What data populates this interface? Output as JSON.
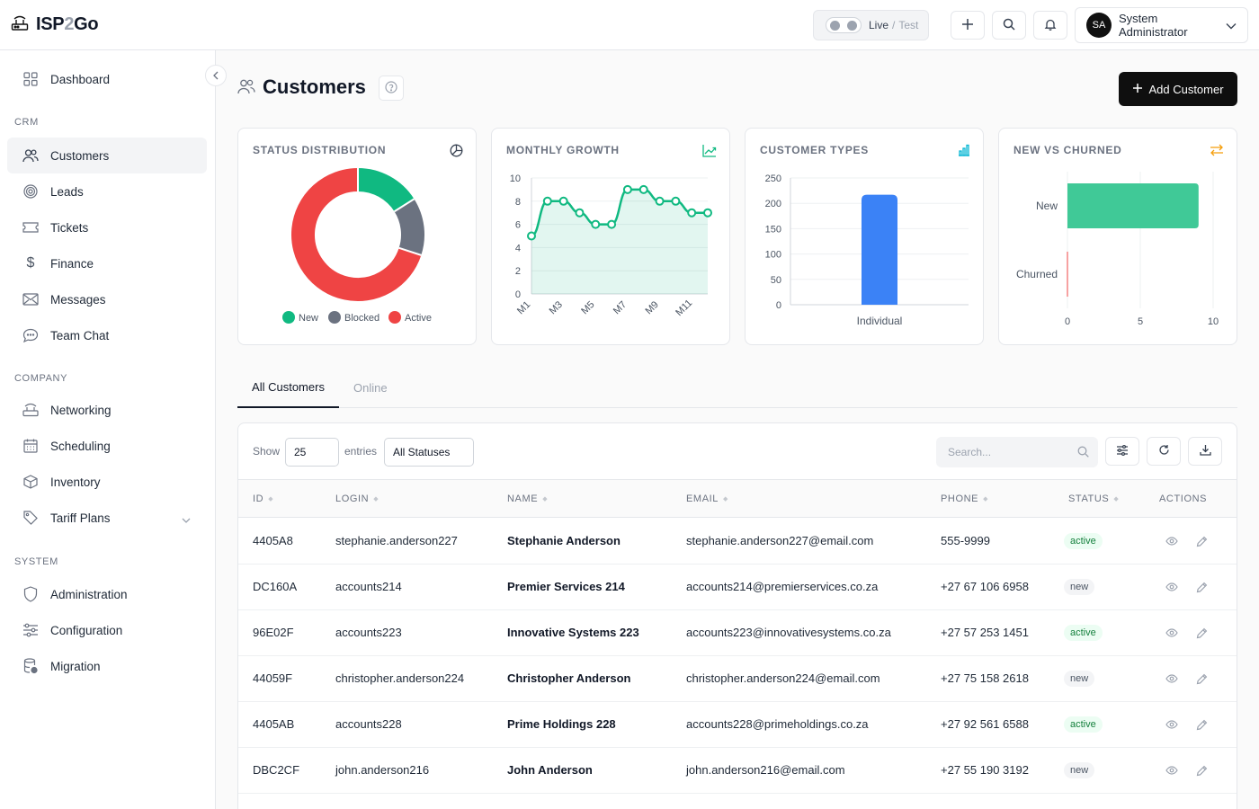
{
  "app": {
    "brand_prefix": "ISP",
    "brand_mid": "2",
    "brand_suffix": "Go"
  },
  "topbar": {
    "mode_live": "Live",
    "mode_sep": "/",
    "mode_test": "Test",
    "user_initials": "SA",
    "user_name": "System Administrator"
  },
  "sidebar": {
    "dashboard": "Dashboard",
    "crm_section": "CRM",
    "crm_items": [
      "Customers",
      "Leads",
      "Tickets",
      "Finance",
      "Messages",
      "Team Chat"
    ],
    "company_section": "COMPANY",
    "company_items": [
      "Networking",
      "Scheduling",
      "Inventory",
      "Tariff Plans"
    ],
    "system_section": "SYSTEM",
    "system_items": [
      "Administration",
      "Configuration",
      "Migration"
    ]
  },
  "page": {
    "title": "Customers",
    "add_button": "Add Customer"
  },
  "cards": {
    "status_title": "STATUS DISTRIBUTION",
    "growth_title": "MONTHLY GROWTH",
    "types_title": "CUSTOMER TYPES",
    "churn_title": "NEW VS CHURNED"
  },
  "colors": {
    "new": "#10b981",
    "blocked": "#6b7280",
    "active": "#ef4444",
    "growth_line": "#10b981",
    "types_bar": "#3b82f6",
    "churn_bar": "#40c997"
  },
  "chart_data": [
    {
      "type": "pie",
      "title": "STATUS DISTRIBUTION",
      "labels": [
        "New",
        "Blocked",
        "Active"
      ],
      "values": [
        16,
        14,
        70
      ]
    },
    {
      "type": "line",
      "title": "MONTHLY GROWTH",
      "x": [
        "M1",
        "M2",
        "M3",
        "M4",
        "M5",
        "M6",
        "M7",
        "M8",
        "M9",
        "M10",
        "M11",
        "M12"
      ],
      "x_tick_labels": [
        "M1",
        "M3",
        "M5",
        "M7",
        "M9",
        "M11"
      ],
      "values": [
        5,
        8,
        8,
        7,
        6,
        6,
        9,
        9,
        8,
        8,
        7,
        7
      ],
      "ylim": [
        0,
        10
      ],
      "y_ticks": [
        0,
        2,
        4,
        6,
        8,
        10
      ]
    },
    {
      "type": "bar",
      "title": "CUSTOMER TYPES",
      "categories": [
        "Individual"
      ],
      "values": [
        217
      ],
      "ylim": [
        0,
        250
      ],
      "y_ticks": [
        0,
        50,
        100,
        150,
        200,
        250
      ]
    },
    {
      "type": "bar",
      "orientation": "horizontal",
      "title": "NEW VS CHURNED",
      "categories": [
        "New",
        "Churned"
      ],
      "values": [
        9,
        0
      ],
      "xlim": [
        0,
        10
      ],
      "x_ticks": [
        0,
        5,
        10
      ]
    }
  ],
  "tabs": [
    "All Customers",
    "Online"
  ],
  "table_controls": {
    "show_label": "Show",
    "entries_value": "25",
    "entries_label": "entries",
    "status_filter": "All Statuses",
    "search_placeholder": "Search..."
  },
  "table": {
    "headers": [
      "ID",
      "LOGIN",
      "NAME",
      "EMAIL",
      "PHONE",
      "STATUS",
      "ACTIONS"
    ],
    "rows": [
      {
        "id": "4405A8",
        "login": "stephanie.anderson227",
        "name": "Stephanie Anderson",
        "email": "stephanie.anderson227@email.com",
        "phone": "555-9999",
        "status": "active"
      },
      {
        "id": "DC160A",
        "login": "accounts214",
        "name": "Premier Services 214",
        "email": "accounts214@premierservices.co.za",
        "phone": "+27 67 106 6958",
        "status": "new"
      },
      {
        "id": "96E02F",
        "login": "accounts223",
        "name": "Innovative Systems 223",
        "email": "accounts223@innovativesystems.co.za",
        "phone": "+27 57 253 1451",
        "status": "active"
      },
      {
        "id": "44059F",
        "login": "christopher.anderson224",
        "name": "Christopher Anderson",
        "email": "christopher.anderson224@email.com",
        "phone": "+27 75 158 2618",
        "status": "new"
      },
      {
        "id": "4405AB",
        "login": "accounts228",
        "name": "Prime Holdings 228",
        "email": "accounts228@primeholdings.co.za",
        "phone": "+27 92 561 6588",
        "status": "active"
      },
      {
        "id": "DBC2CF",
        "login": "john.anderson216",
        "name": "John Anderson",
        "email": "john.anderson216@email.com",
        "phone": "+27 55 190 3192",
        "status": "new"
      }
    ]
  }
}
